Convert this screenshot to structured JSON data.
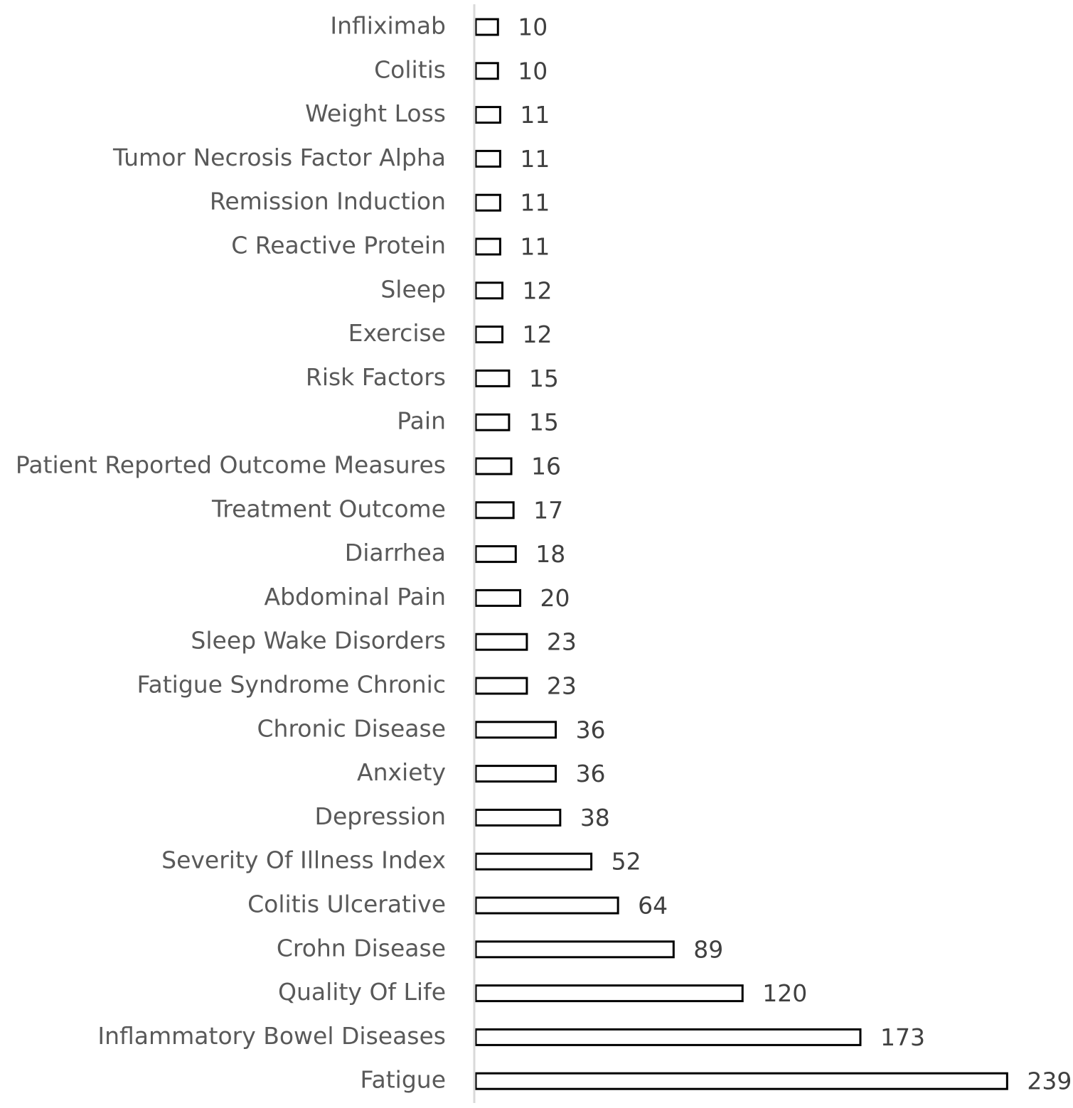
{
  "chart_data": {
    "type": "bar",
    "orientation": "horizontal",
    "categories": [
      "Infliximab",
      "Colitis",
      "Weight Loss",
      "Tumor Necrosis Factor Alpha",
      "Remission Induction",
      "C Reactive Protein",
      "Sleep",
      "Exercise",
      "Risk Factors",
      "Pain",
      "Patient Reported Outcome Measures",
      "Treatment Outcome",
      "Diarrhea",
      "Abdominal Pain",
      "Sleep Wake Disorders",
      "Fatigue Syndrome Chronic",
      "Chronic Disease",
      "Anxiety",
      "Depression",
      "Severity Of Illness Index",
      "Colitis Ulcerative",
      "Crohn Disease",
      "Quality Of Life",
      "Inflammatory Bowel Diseases",
      "Fatigue"
    ],
    "values": [
      10,
      10,
      11,
      11,
      11,
      11,
      12,
      12,
      15,
      15,
      16,
      17,
      18,
      20,
      23,
      23,
      36,
      36,
      38,
      52,
      64,
      89,
      120,
      173,
      239
    ],
    "title": "",
    "xlabel": "",
    "ylabel": "",
    "xlim": [
      0,
      239
    ],
    "grid": false,
    "legend": "none",
    "data_labels": true,
    "colors": {
      "bar_fill": "#ffffff",
      "bar_stroke": "#000000",
      "axis": "#d9d9d9",
      "category_text": "#595959",
      "value_text": "#404040"
    }
  }
}
